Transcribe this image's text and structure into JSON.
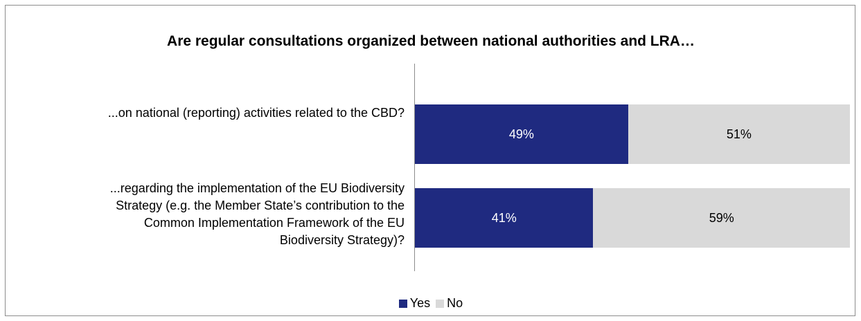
{
  "chart_data": {
    "type": "bar",
    "orientation": "horizontal",
    "stacked": true,
    "title": "Are regular consultations organized between national authorities and LRA…",
    "categories": [
      "...on national (reporting) activities related to the CBD?",
      "...regarding the implementation of the EU Biodiversity Strategy (e.g. the Member State’s contribution to the Common Implementation Framework of the EU Biodiversity Strategy)?"
    ],
    "category_lines": [
      [
        "...on national (reporting) activities related to the CBD?"
      ],
      [
        "...regarding the implementation of the EU Biodiversity",
        "Strategy (e.g. the Member State’s contribution to the",
        "Common Implementation Framework of the EU",
        "Biodiversity Strategy)?"
      ]
    ],
    "series": [
      {
        "name": "Yes",
        "values": [
          49,
          41
        ],
        "labels": [
          "49%",
          "41%"
        ],
        "color": "#1f2a80",
        "text_color": "#ffffff"
      },
      {
        "name": "No",
        "values": [
          51,
          59
        ],
        "labels": [
          "51%",
          "59%"
        ],
        "color": "#d9d9d9",
        "text_color": "#000000"
      }
    ],
    "xlim": [
      0,
      100
    ],
    "legend_position": "bottom",
    "grid": false
  }
}
